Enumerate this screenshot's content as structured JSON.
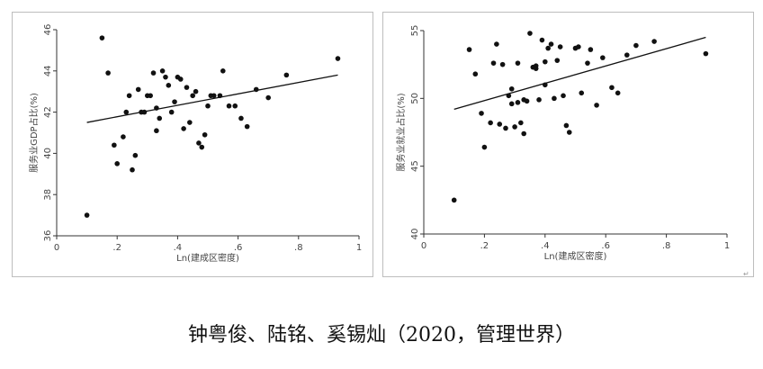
{
  "caption": "钟粤俊、陆铭、奚锡灿（2020，管理世界）",
  "corner_mark": "↵",
  "chart_data": [
    {
      "type": "scatter",
      "xlabel": "Ln(建成区密度)",
      "ylabel": "服务业GDP占比(%)",
      "xlim": [
        0,
        1
      ],
      "ylim": [
        36,
        46
      ],
      "xticks": [
        0,
        0.2,
        0.4,
        0.6,
        0.8,
        1
      ],
      "xtick_labels": [
        "0",
        ".2",
        ".4",
        ".6",
        ".8",
        "1"
      ],
      "yticks": [
        36,
        38,
        40,
        42,
        44,
        46
      ],
      "ytick_labels": [
        "36",
        "38",
        "40",
        "42",
        "44",
        "46"
      ],
      "fit_line": {
        "x": [
          0.1,
          0.93
        ],
        "y": [
          41.5,
          43.8
        ]
      },
      "points": [
        [
          0.1,
          37.0
        ],
        [
          0.15,
          45.6
        ],
        [
          0.17,
          43.9
        ],
        [
          0.19,
          40.4
        ],
        [
          0.2,
          39.5
        ],
        [
          0.22,
          40.8
        ],
        [
          0.23,
          42.0
        ],
        [
          0.24,
          42.8
        ],
        [
          0.25,
          39.2
        ],
        [
          0.26,
          39.9
        ],
        [
          0.27,
          43.1
        ],
        [
          0.28,
          42.0
        ],
        [
          0.29,
          42.0
        ],
        [
          0.3,
          42.8
        ],
        [
          0.31,
          42.8
        ],
        [
          0.32,
          43.9
        ],
        [
          0.33,
          42.2
        ],
        [
          0.33,
          41.1
        ],
        [
          0.34,
          41.7
        ],
        [
          0.35,
          44.0
        ],
        [
          0.36,
          43.7
        ],
        [
          0.37,
          43.3
        ],
        [
          0.38,
          42.0
        ],
        [
          0.39,
          42.5
        ],
        [
          0.4,
          43.7
        ],
        [
          0.41,
          43.6
        ],
        [
          0.42,
          41.2
        ],
        [
          0.43,
          43.2
        ],
        [
          0.44,
          41.5
        ],
        [
          0.45,
          42.8
        ],
        [
          0.46,
          43.0
        ],
        [
          0.47,
          40.5
        ],
        [
          0.48,
          40.3
        ],
        [
          0.49,
          40.9
        ],
        [
          0.5,
          42.3
        ],
        [
          0.51,
          42.8
        ],
        [
          0.52,
          42.8
        ],
        [
          0.54,
          42.8
        ],
        [
          0.55,
          44.0
        ],
        [
          0.57,
          42.3
        ],
        [
          0.59,
          42.3
        ],
        [
          0.61,
          41.7
        ],
        [
          0.63,
          41.3
        ],
        [
          0.66,
          43.1
        ],
        [
          0.7,
          42.7
        ],
        [
          0.76,
          43.8
        ],
        [
          0.93,
          44.6
        ]
      ]
    },
    {
      "type": "scatter",
      "xlabel": "Ln(建成区密度)",
      "ylabel": "服务业就业占比(%)",
      "xlim": [
        0,
        1
      ],
      "ylim": [
        40,
        55
      ],
      "xticks": [
        0,
        0.2,
        0.4,
        0.6,
        0.8,
        1
      ],
      "xtick_labels": [
        "0",
        ".2",
        ".4",
        ".6",
        ".8",
        "1"
      ],
      "yticks": [
        40,
        45,
        50,
        55
      ],
      "ytick_labels": [
        "40",
        "45",
        "50",
        "55"
      ],
      "fit_line": {
        "x": [
          0.1,
          0.93
        ],
        "y": [
          49.2,
          54.5
        ]
      },
      "points": [
        [
          0.1,
          42.5
        ],
        [
          0.15,
          53.6
        ],
        [
          0.17,
          51.8
        ],
        [
          0.19,
          48.9
        ],
        [
          0.2,
          46.4
        ],
        [
          0.22,
          48.2
        ],
        [
          0.23,
          52.6
        ],
        [
          0.24,
          54.0
        ],
        [
          0.25,
          48.1
        ],
        [
          0.26,
          52.5
        ],
        [
          0.27,
          47.8
        ],
        [
          0.28,
          50.2
        ],
        [
          0.29,
          50.7
        ],
        [
          0.29,
          49.6
        ],
        [
          0.3,
          47.9
        ],
        [
          0.31,
          49.7
        ],
        [
          0.31,
          52.6
        ],
        [
          0.32,
          48.2
        ],
        [
          0.33,
          49.9
        ],
        [
          0.33,
          47.4
        ],
        [
          0.34,
          49.8
        ],
        [
          0.35,
          54.8
        ],
        [
          0.36,
          52.3
        ],
        [
          0.37,
          52.4
        ],
        [
          0.37,
          52.2
        ],
        [
          0.38,
          49.9
        ],
        [
          0.39,
          54.3
        ],
        [
          0.4,
          52.7
        ],
        [
          0.4,
          51.0
        ],
        [
          0.41,
          53.7
        ],
        [
          0.42,
          54.0
        ],
        [
          0.43,
          50.0
        ],
        [
          0.44,
          52.8
        ],
        [
          0.45,
          53.8
        ],
        [
          0.46,
          50.2
        ],
        [
          0.47,
          48.0
        ],
        [
          0.48,
          47.5
        ],
        [
          0.5,
          53.7
        ],
        [
          0.51,
          53.8
        ],
        [
          0.52,
          50.4
        ],
        [
          0.54,
          52.6
        ],
        [
          0.55,
          53.6
        ],
        [
          0.57,
          49.5
        ],
        [
          0.59,
          53.0
        ],
        [
          0.62,
          50.8
        ],
        [
          0.64,
          50.4
        ],
        [
          0.67,
          53.2
        ],
        [
          0.7,
          53.9
        ],
        [
          0.76,
          54.2
        ],
        [
          0.93,
          53.3
        ]
      ]
    }
  ]
}
